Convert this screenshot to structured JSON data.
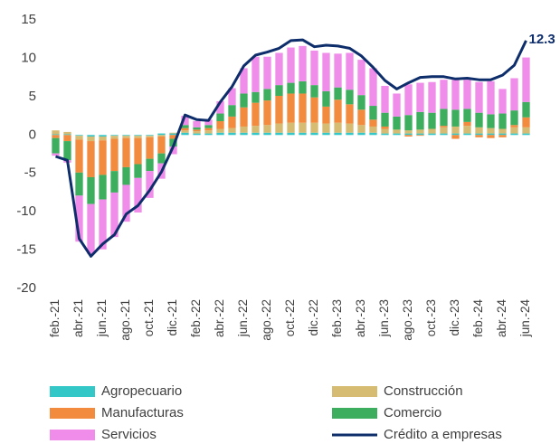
{
  "chart_data": {
    "type": "bar",
    "stacked": true,
    "categories": [
      "feb.-21",
      null,
      "abr.-21",
      null,
      "jun.-21",
      null,
      "ago.-21",
      null,
      "oct.-21",
      null,
      "dic.-21",
      null,
      "feb.-22",
      null,
      "abr.-22",
      null,
      "jun.-22",
      null,
      "ago.-22",
      null,
      "oct.-22",
      null,
      "dic.-22",
      null,
      "feb.-23",
      null,
      "abr.-23",
      null,
      "jun.-23",
      null,
      "ago.-23",
      null,
      "oct.-23",
      null,
      "dic.-23",
      null,
      "feb.-24",
      null,
      "abr.-24",
      null,
      "jun.-24"
    ],
    "ylim": [
      -20,
      15
    ],
    "yticks": [
      -20,
      -15,
      -10,
      -5,
      0,
      5,
      10,
      15
    ],
    "series": [
      {
        "name": "Agropecuario",
        "color": "#33c7c7",
        "values": [
          0.1,
          0.1,
          -0.1,
          -0.2,
          -0.2,
          -0.1,
          -0.1,
          -0.1,
          -0.1,
          0.2,
          0.2,
          0.3,
          0.2,
          0.2,
          0.3,
          0.3,
          0.3,
          0.3,
          0.3,
          0.3,
          0.3,
          0.3,
          0.3,
          0.3,
          0.3,
          0.3,
          0.3,
          0.3,
          0.2,
          0.2,
          0.2,
          0.2,
          0.2,
          0.2,
          0.2,
          0.2,
          0.2,
          0.2,
          0.2,
          0.2,
          0.2
        ]
      },
      {
        "name": "Construcción",
        "color": "#d6bb73",
        "values": [
          0.5,
          0.3,
          -0.5,
          -0.6,
          -0.5,
          -0.4,
          -0.3,
          -0.3,
          -0.2,
          -0.2,
          0.1,
          0.3,
          0.3,
          0.4,
          0.5,
          0.6,
          0.8,
          0.9,
          1.0,
          1.2,
          1.3,
          1.3,
          1.3,
          1.2,
          1.3,
          1.2,
          1.0,
          0.8,
          0.6,
          0.5,
          0.4,
          0.5,
          0.6,
          0.8,
          0.9,
          1.0,
          0.8,
          0.7,
          0.6,
          0.8,
          0.8
        ]
      },
      {
        "name": "Manufacturas",
        "color": "#f28b3e",
        "values": [
          -0.4,
          -0.8,
          -4.3,
          -4.7,
          -4.5,
          -4.2,
          -3.8,
          -3.4,
          -2.8,
          -2.2,
          -0.5,
          0.3,
          0.2,
          0.3,
          1.0,
          1.5,
          2.5,
          3.0,
          3.2,
          3.6,
          3.8,
          3.8,
          3.3,
          2.2,
          3.0,
          2.5,
          2.0,
          0.9,
          0.3,
          0.0,
          -0.2,
          -0.1,
          0.0,
          0.2,
          -0.5,
          0.5,
          -0.3,
          -0.4,
          -0.3,
          0.3,
          1.3
        ]
      },
      {
        "name": "Comercio",
        "color": "#3dae5e",
        "values": [
          -2.0,
          -2.5,
          -3.0,
          -3.5,
          -3.2,
          -2.8,
          -2.3,
          -1.8,
          -1.6,
          -1.3,
          -1.0,
          0.4,
          0.3,
          0.4,
          1.0,
          1.5,
          1.8,
          1.4,
          1.5,
          1.4,
          1.4,
          1.6,
          1.6,
          2.0,
          1.6,
          1.9,
          1.9,
          1.8,
          1.8,
          1.7,
          2.0,
          2.3,
          2.1,
          2.2,
          2.2,
          1.7,
          1.9,
          1.8,
          2.0,
          1.9,
          2.0
        ]
      },
      {
        "name": "Servicios",
        "color": "#f08ce9",
        "values": [
          -0.3,
          -0.3,
          -6.0,
          -6.5,
          -6.5,
          -5.8,
          -4.8,
          -4.5,
          -3.5,
          -2.0,
          -1.0,
          1.2,
          0.8,
          0.7,
          1.6,
          2.2,
          3.3,
          4.6,
          4.2,
          4.2,
          4.6,
          4.6,
          4.5,
          5.0,
          4.4,
          4.8,
          4.6,
          4.9,
          3.5,
          3.0,
          4.0,
          3.8,
          4.0,
          3.8,
          3.9,
          3.8,
          4.0,
          4.3,
          3.2,
          4.2,
          5.8
        ]
      },
      {
        "name": "Crédito a empresas",
        "color": "#0d2d6b",
        "type": "line",
        "values": [
          -2.8,
          -3.3,
          -13.5,
          -15.8,
          -14.2,
          -13.0,
          -10.3,
          -9.2,
          -7.2,
          -4.8,
          -1.5,
          2.6,
          2.0,
          1.9,
          4.3,
          6.3,
          9.0,
          10.4,
          10.8,
          11.3,
          12.3,
          12.4,
          11.5,
          11.7,
          11.6,
          11.3,
          10.3,
          8.8,
          7.1,
          6.0,
          6.8,
          7.5,
          7.6,
          7.6,
          7.3,
          7.4,
          7.2,
          7.2,
          7.8,
          9.1,
          12.3
        ]
      }
    ]
  }
}
